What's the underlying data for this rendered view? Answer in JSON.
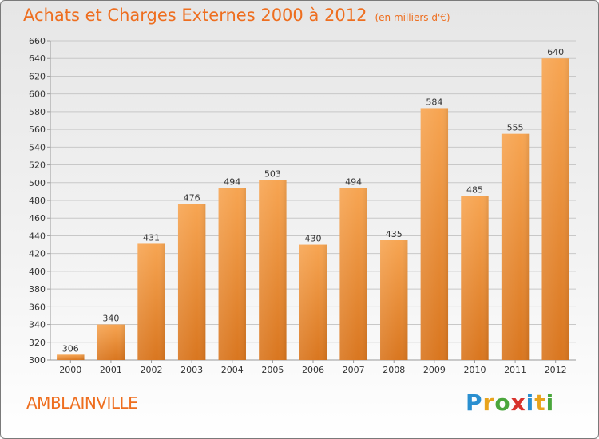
{
  "title": "Achats et Charges Externes 2000 à 2012",
  "subtitle": "(en milliers d'€)",
  "city": "AMBLAINVILLE",
  "logo": {
    "letters": [
      {
        "ch": "P",
        "color": "#2a8fd0"
      },
      {
        "ch": "r",
        "color": "#e8a31c"
      },
      {
        "ch": "o",
        "color": "#4aa63c"
      },
      {
        "ch": "x",
        "color": "#d8322c"
      },
      {
        "ch": "i",
        "color": "#2a8fd0"
      },
      {
        "ch": "t",
        "color": "#e8a31c"
      },
      {
        "ch": "i",
        "color": "#4aa63c"
      }
    ]
  },
  "colors": {
    "title": "#ee6e1f",
    "bar_top": "#f7a552",
    "bar_bottom": "#d9761f",
    "grid": "#c8c8c8",
    "axis_text": "#333333"
  },
  "chart_data": {
    "type": "bar",
    "title": "Achats et Charges Externes 2000 à 2012",
    "subtitle": "(en milliers d'€)",
    "categories": [
      "2000",
      "2001",
      "2002",
      "2003",
      "2004",
      "2005",
      "2006",
      "2007",
      "2008",
      "2009",
      "2010",
      "2011",
      "2012"
    ],
    "values": [
      306,
      340,
      431,
      476,
      494,
      503,
      430,
      494,
      435,
      584,
      485,
      555,
      640
    ],
    "ylim": [
      300,
      660
    ],
    "ytick_step": 20,
    "grid": true,
    "data_labels": true
  }
}
